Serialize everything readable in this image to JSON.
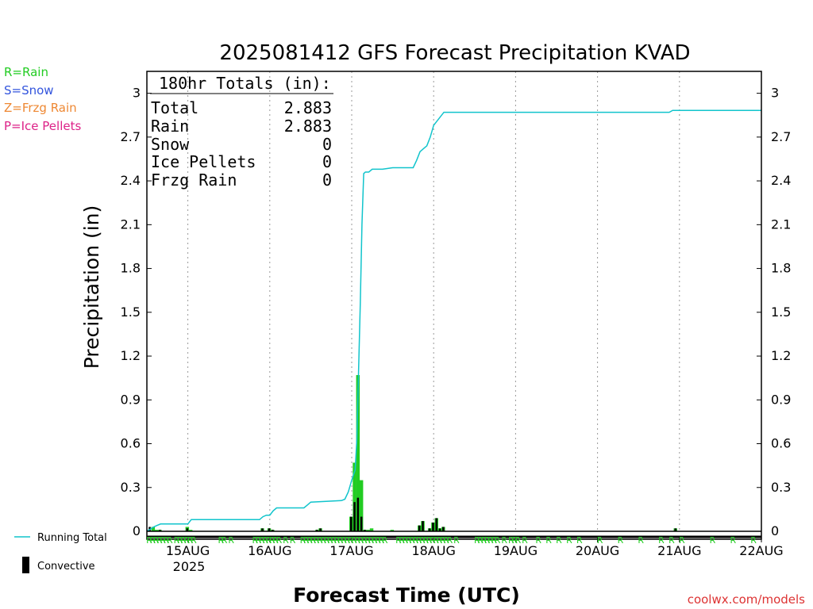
{
  "colors": {
    "rain": "#22cc22",
    "snow": "#3355dd",
    "frzg_rain": "#ee8833",
    "ice_pellets": "#dd2288",
    "running_total": "#11c4cc",
    "convective": "#000000",
    "credit": "#dd3333"
  },
  "legend_top": [
    {
      "text": "R=Rain",
      "color": "#22cc22"
    },
    {
      "text": "S=Snow",
      "color": "#3355dd"
    },
    {
      "text": "Z=Frzg Rain",
      "color": "#ee8833"
    },
    {
      "text": "P=Ice Pellets",
      "color": "#dd2288"
    }
  ],
  "legend_bottom": {
    "running_total": "Running Total",
    "convective": "Convective"
  },
  "totals_box": {
    "header": "180hr Totals (in):",
    "rows": [
      {
        "label": "Total",
        "value": "2.883"
      },
      {
        "label": "Rain",
        "value": "2.883"
      },
      {
        "label": "Snow",
        "value": "0"
      },
      {
        "label": "Ice Pellets",
        "value": "0"
      },
      {
        "label": "Frzg Rain",
        "value": "0"
      }
    ]
  },
  "credit": "coolwx.com/models",
  "chart_data": {
    "type": "bar",
    "title": "2025081412 GFS Forecast Precipitation KVAD",
    "xlabel": "Forecast Time (UTC)",
    "ylabel": "Precipitation (in)",
    "ylim": [
      0,
      3.15
    ],
    "xlim": [
      "2025-08-14 12Z",
      "2025-08-22 00Z"
    ],
    "y_ticks": [
      "0",
      "0.3",
      "0.6",
      "0.9",
      "1.2",
      "1.5",
      "1.8",
      "2.1",
      "2.4",
      "2.7",
      "3"
    ],
    "x_ticks": [
      "15AUG",
      "16AUG",
      "17AUG",
      "18AUG",
      "19AUG",
      "20AUG",
      "21AUG",
      "22AUG"
    ],
    "x_tick_hours": [
      12,
      36,
      60,
      84,
      108,
      132,
      156,
      180
    ],
    "year_label": "2025",
    "grid": "vertical dotted at day boundaries",
    "series": [
      {
        "name": "Running Total",
        "type": "line",
        "hours": [
          0,
          2,
          3,
          4,
          12,
          13,
          33,
          34,
          35,
          36,
          37,
          38,
          46,
          47,
          48,
          57,
          58,
          59,
          60,
          61,
          61.5,
          62,
          62.5,
          63,
          63.5,
          64,
          65,
          66,
          69,
          72,
          78,
          79,
          80,
          81,
          82,
          83,
          84,
          85,
          86,
          87,
          102,
          144,
          153,
          154,
          180
        ],
        "values": [
          0.0,
          0.03,
          0.04,
          0.05,
          0.05,
          0.08,
          0.08,
          0.1,
          0.11,
          0.11,
          0.14,
          0.16,
          0.16,
          0.18,
          0.2,
          0.21,
          0.22,
          0.27,
          0.35,
          0.42,
          0.62,
          1.09,
          1.56,
          2.1,
          2.45,
          2.46,
          2.46,
          2.48,
          2.48,
          2.49,
          2.49,
          2.54,
          2.6,
          2.62,
          2.64,
          2.7,
          2.78,
          2.81,
          2.84,
          2.87,
          2.87,
          2.87,
          2.87,
          2.883,
          2.883
        ]
      },
      {
        "name": "Convective",
        "type": "bar",
        "hours": [
          1,
          4,
          12,
          34,
          36,
          37,
          50,
          51,
          60,
          61,
          62,
          63,
          64,
          80,
          81,
          83,
          84,
          85,
          86,
          87,
          155
        ],
        "values": [
          0.03,
          0.01,
          0.02,
          0.02,
          0.02,
          0.01,
          0.01,
          0.02,
          0.1,
          0.2,
          0.23,
          0.1,
          0.01,
          0.04,
          0.07,
          0.02,
          0.06,
          0.09,
          0.02,
          0.03,
          0.02
        ]
      },
      {
        "name": "Rain",
        "type": "bar",
        "hours": [
          2,
          3,
          4,
          12,
          13,
          34,
          36,
          37,
          50,
          51,
          60,
          61,
          62,
          63,
          64,
          65,
          66,
          72,
          80,
          81,
          83,
          84,
          85,
          86,
          87,
          155
        ],
        "values": [
          0.03,
          0.01,
          0.01,
          0.03,
          0.01,
          0.02,
          0.02,
          0.01,
          0.01,
          0.02,
          0.1,
          0.47,
          1.07,
          0.35,
          0.01,
          0.01,
          0.02,
          0.01,
          0.04,
          0.07,
          0.02,
          0.06,
          0.09,
          0.02,
          0.03,
          0.02
        ]
      }
    ],
    "ptype_marks": {
      "symbol": "R",
      "hours": [
        0,
        1,
        2,
        3,
        4,
        5,
        6,
        8,
        9,
        10,
        11,
        12,
        13,
        21,
        22,
        24,
        31,
        32,
        33,
        34,
        35,
        36,
        37,
        38,
        40,
        42,
        45,
        46,
        47,
        48,
        49,
        50,
        51,
        52,
        53,
        54,
        55,
        56,
        57,
        58,
        59,
        60,
        61,
        62,
        63,
        64,
        65,
        66,
        67,
        68,
        69,
        73,
        74,
        75,
        76,
        77,
        78,
        79,
        80,
        81,
        82,
        83,
        84,
        85,
        86,
        87,
        88,
        90,
        96,
        97,
        98,
        99,
        100,
        101,
        102,
        104,
        106,
        107,
        108,
        110,
        114,
        117,
        120,
        123,
        126,
        132,
        138,
        144,
        150,
        153,
        156,
        165,
        171,
        177
      ]
    }
  }
}
